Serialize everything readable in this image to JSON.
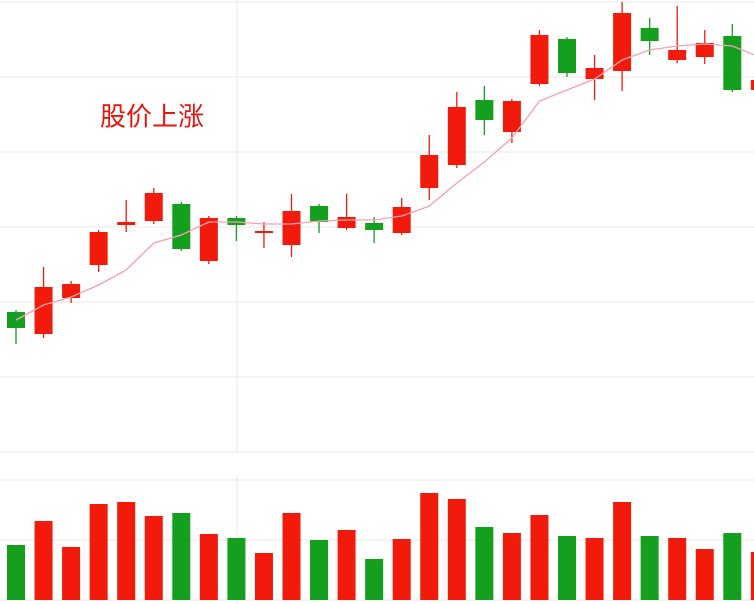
{
  "chart_data": {
    "type": "candlestick",
    "annotation": "股价上涨",
    "up_color": "#f21a0a",
    "down_color": "#14a01e",
    "open": [
      138,
      116,
      152,
      185,
      225,
      229,
      246,
      189,
      232,
      217,
      205,
      244,
      222,
      227,
      217,
      262,
      285,
      350,
      318,
      366,
      411,
      371,
      379,
      422,
      390,
      393,
      414,
      360
    ],
    "high": [
      140,
      183,
      169,
      220,
      250,
      262,
      248,
      234,
      234,
      228,
      256,
      246,
      256,
      233,
      252,
      315,
      358,
      364,
      351,
      420,
      413,
      395,
      448,
      432,
      444,
      420,
      426,
      375
    ],
    "low": [
      106,
      112,
      147,
      178,
      218,
      226,
      199,
      186,
      209,
      202,
      193,
      217,
      220,
      207,
      215,
      250,
      282,
      315,
      307,
      364,
      373,
      350,
      359,
      395,
      387,
      386,
      358,
      355
    ],
    "close": [
      122,
      163,
      166,
      218,
      228,
      257,
      201,
      232,
      225,
      219,
      239,
      228,
      233,
      220,
      243,
      295,
      343,
      330,
      349,
      415,
      377,
      382,
      437,
      409,
      400,
      407,
      360,
      370
    ],
    "ma": {
      "color": "#f4a0b4",
      "values": [
        130,
        145,
        153,
        165,
        180,
        207,
        215,
        228,
        228,
        226,
        226,
        229,
        230,
        230,
        234,
        244,
        267,
        288,
        312,
        349,
        360,
        371,
        390,
        400,
        404,
        406,
        404,
        393
      ]
    },
    "ylim": [
      -4,
      450
    ],
    "yticks": [
      448,
      373,
      298,
      223,
      148,
      73,
      -2
    ],
    "grid": true,
    "volume": {
      "values": [
        55,
        79,
        53,
        96,
        98,
        84,
        87,
        66,
        62,
        47,
        87,
        60,
        70,
        41,
        61,
        107,
        101,
        73,
        67,
        85,
        64,
        62,
        98,
        64,
        62,
        51,
        67,
        48
      ],
      "ylim": [
        0,
        124
      ],
      "yticks": [
        0,
        60,
        120
      ]
    }
  }
}
